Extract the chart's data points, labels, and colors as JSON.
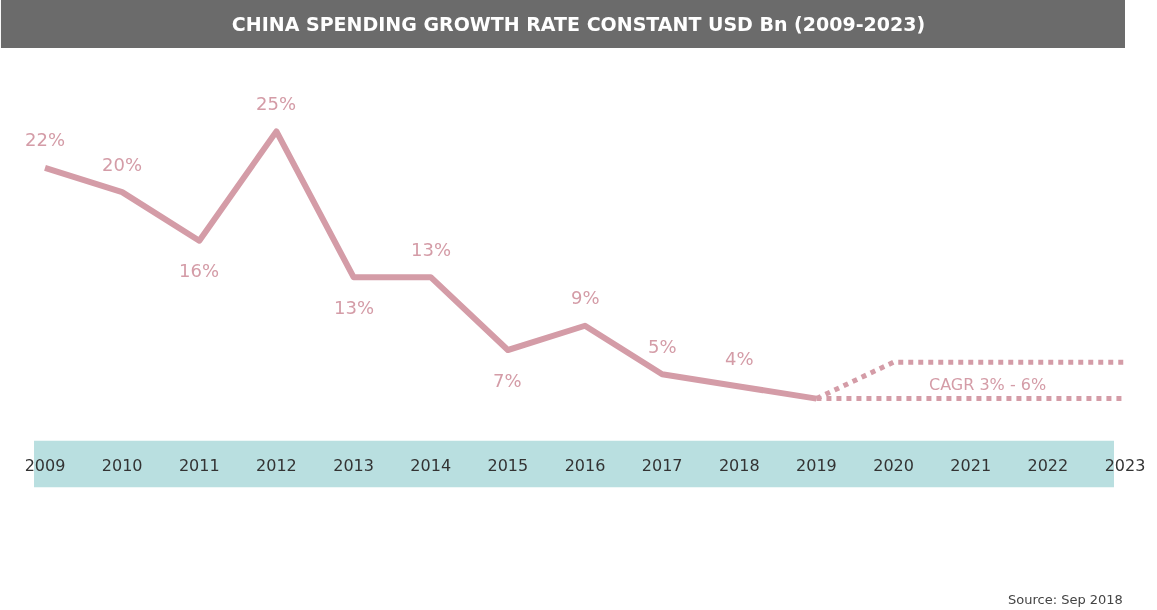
{
  "chart_data": {
    "type": "line",
    "title": "CHINA SPENDING GROWTH RATE CONSTANT USD Bn (2009-2023)",
    "categories": [
      "2009",
      "2010",
      "2011",
      "2012",
      "2013",
      "2014",
      "2015",
      "2016",
      "2017",
      "2018",
      "2019",
      "2020",
      "2021",
      "2022",
      "2023"
    ],
    "series": [
      {
        "color": "#d49ca7",
        "line_style": "solid",
        "values": [
          22,
          20,
          16,
          25,
          13,
          13,
          7,
          9,
          5,
          4,
          3,
          null,
          null,
          null,
          null
        ],
        "value_labels": [
          "22%",
          "20%",
          "16%",
          "25%",
          "13%",
          "13%",
          "7%",
          "9%",
          "5%",
          "4%",
          null,
          null,
          null,
          null,
          null
        ]
      },
      {
        "color": "#d49ca7",
        "line_style": "dotted",
        "values": [
          null,
          null,
          null,
          null,
          null,
          null,
          null,
          null,
          null,
          null,
          3,
          6,
          6,
          6,
          6
        ]
      },
      {
        "color": "#d49ca7",
        "line_style": "dotted",
        "values": [
          null,
          null,
          null,
          null,
          null,
          null,
          null,
          null,
          null,
          null,
          3,
          3,
          3,
          3,
          3
        ]
      }
    ],
    "annotations": [
      "CAGR 3% - 6%",
      "Source: Sep 2018"
    ],
    "marker": "none"
  }
}
